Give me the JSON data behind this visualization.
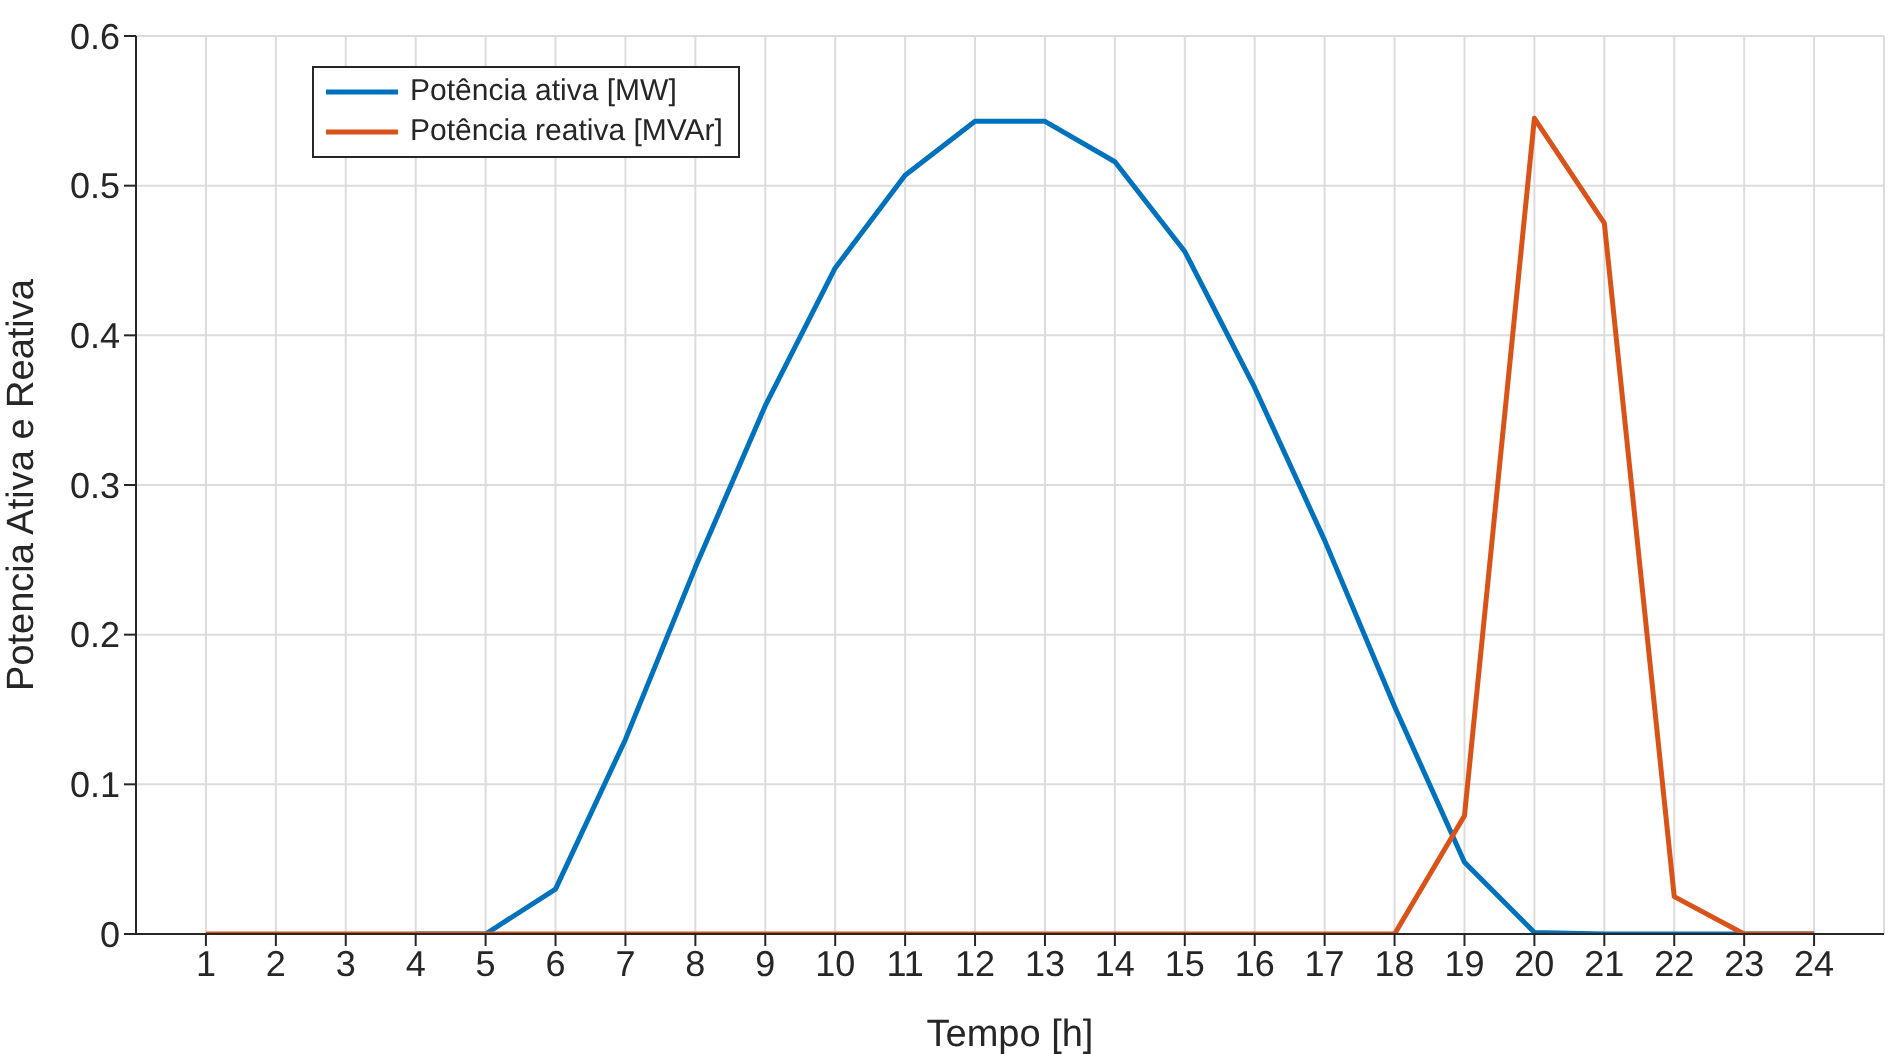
{
  "chart_data": {
    "type": "line",
    "xlabel": "Tempo [h]",
    "ylabel": "Potencia Ativa e Reativa",
    "x": [
      1,
      2,
      3,
      4,
      5,
      6,
      7,
      8,
      9,
      10,
      11,
      12,
      13,
      14,
      15,
      16,
      17,
      18,
      19,
      20,
      21,
      22,
      23,
      24
    ],
    "series": [
      {
        "name": "Potência ativa [MW]",
        "color": "#0072bd",
        "values": [
          null,
          null,
          null,
          0,
          0,
          0.03,
          0.13,
          0.245,
          0.353,
          0.445,
          0.507,
          0.543,
          0.543,
          0.516,
          0.456,
          0.365,
          0.263,
          0.152,
          0.048,
          0.001,
          0,
          0,
          0,
          0
        ]
      },
      {
        "name": "Potência reativa [MVAr]",
        "color": "#d95319",
        "values": [
          0,
          0,
          0,
          0,
          0,
          0,
          0,
          0,
          0,
          0,
          0,
          0,
          0,
          0,
          0,
          0,
          0,
          0,
          0.079,
          0.545,
          0.475,
          0.025,
          0,
          0
        ]
      }
    ],
    "xlim": [
      0,
      25
    ],
    "xticks": [
      1,
      2,
      3,
      4,
      5,
      6,
      7,
      8,
      9,
      10,
      11,
      12,
      13,
      14,
      15,
      16,
      17,
      18,
      19,
      20,
      21,
      22,
      23,
      24
    ],
    "ylim": [
      0,
      0.6
    ],
    "yticks": [
      0,
      0.1,
      0.2,
      0.3,
      0.4,
      0.5,
      0.6
    ],
    "grid": true,
    "legend": "top left",
    "marker": "none",
    "line_style": "solid"
  }
}
